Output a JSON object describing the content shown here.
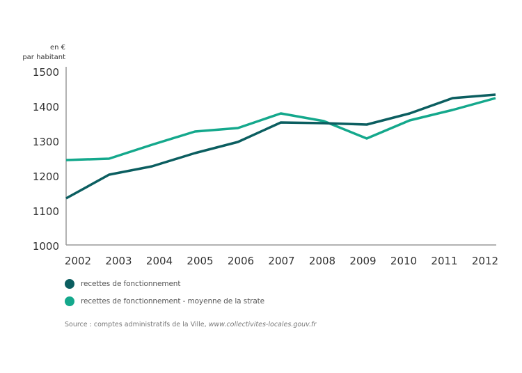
{
  "chart_data": {
    "type": "line",
    "title": "",
    "xlabel": "",
    "ylabel": "en € par habitant",
    "ylabel_lines": [
      "en €",
      "par habitant"
    ],
    "x": [
      "2002",
      "2003",
      "2004",
      "2005",
      "2006",
      "2007",
      "2008",
      "2009",
      "2010",
      "2011",
      "2012"
    ],
    "ylim": [
      1000,
      1500
    ],
    "yticks": [
      "1000",
      "1100",
      "1200",
      "1300",
      "1400",
      "1500"
    ],
    "grid": false,
    "legend_position": "bottom-left",
    "series": [
      {
        "name": "recettes de fonctionnement",
        "color": "#0b5e60",
        "values": [
          1136,
          1204,
          1228,
          1266,
          1298,
          1354,
          1352,
          1348,
          1380,
          1424,
          1434
        ]
      },
      {
        "name": "recettes de fonctionnement - moyenne de la strate",
        "color": "#14a88c",
        "values": [
          1246,
          1250,
          1290,
          1328,
          1338,
          1380,
          1358,
          1308,
          1360,
          1390,
          1424
        ]
      }
    ]
  },
  "source": {
    "prefix": "Source : comptes administratifs de la Ville, ",
    "url": "www.collectivites-locales.gouv.fr"
  }
}
